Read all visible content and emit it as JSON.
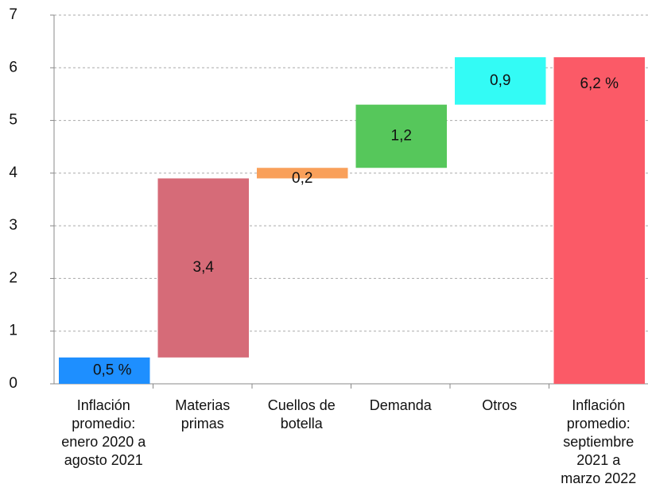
{
  "chart_data": {
    "type": "waterfall",
    "categories": [
      "Inflación promedio: enero 2020 a agosto 2021",
      "Materias primas",
      "Cuellos de botella",
      "Demanda",
      "Otros",
      "Inflación promedio: septiembre 2021 a marzo 2022"
    ],
    "values": [
      0.5,
      3.4,
      0.2,
      1.2,
      0.9,
      6.2
    ],
    "value_labels": [
      "0,5 %",
      "3,4",
      "0,2",
      "1,2",
      "0,9",
      "6,2 %"
    ],
    "colors": [
      "#1e8fff",
      "#d66b78",
      "#f9a05a",
      "#56c75b",
      "#33fbf5",
      "#fb5a67"
    ],
    "total_last": true,
    "ylim": [
      0,
      7
    ],
    "yticks": [
      0,
      1,
      2,
      3,
      4,
      5,
      6,
      7
    ],
    "grid": true
  }
}
